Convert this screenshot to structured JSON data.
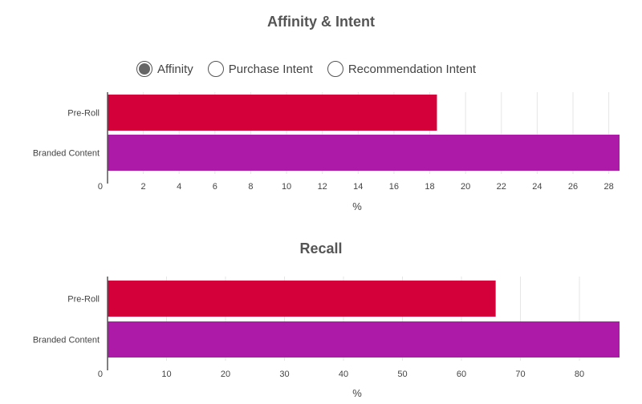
{
  "chart_data": [
    {
      "type": "bar",
      "orientation": "horizontal",
      "title": "Affinity & Intent",
      "xlabel": "%",
      "categories": [
        "Pre-Roll",
        "Branded Content"
      ],
      "values": [
        18.4,
        28.6
      ],
      "colors": [
        "#d4003a",
        "#ad1aa8"
      ],
      "xlim": [
        0,
        28.6
      ],
      "ticks": [
        0,
        2,
        4,
        6,
        8,
        10,
        12,
        14,
        16,
        18,
        20,
        22,
        24,
        26,
        28
      ],
      "grid": true,
      "selector": {
        "options": [
          {
            "label": "Affinity",
            "selected": true
          },
          {
            "label": "Purchase Intent",
            "selected": false
          },
          {
            "label": "Recommendation Intent",
            "selected": false
          }
        ]
      }
    },
    {
      "type": "bar",
      "orientation": "horizontal",
      "title": "Recall",
      "xlabel": "%",
      "categories": [
        "Pre-Roll",
        "Branded Content"
      ],
      "values": [
        65.8,
        86.8
      ],
      "colors": [
        "#d4003a",
        "#ad1aa8"
      ],
      "xlim": [
        0,
        86.8
      ],
      "ticks": [
        0,
        10,
        20,
        30,
        40,
        50,
        60,
        70,
        80
      ],
      "grid": true
    }
  ]
}
